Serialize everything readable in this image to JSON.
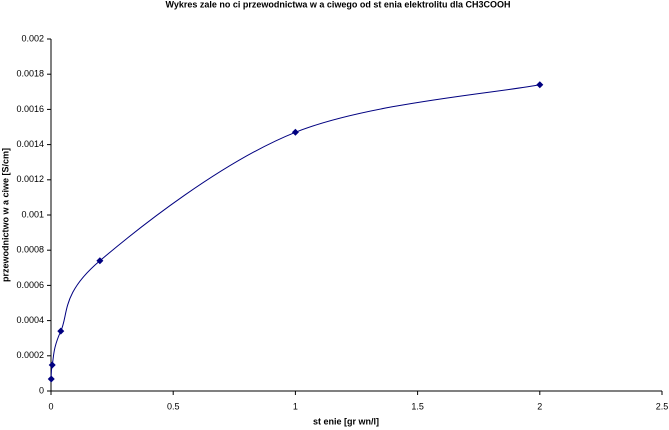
{
  "chart_data": {
    "type": "scatter",
    "title": "Wykres zale no ci przewodnictwa w a ciwego od st enia elektrolitu dla CH3COOH",
    "x_label": "st enie [gr wn/l]",
    "y_label": "przewodnictwo w a ciwe [S/cm]",
    "series": [
      {
        "color": "#000080",
        "x": [
          0.001,
          0.005,
          0.04,
          0.2,
          1,
          2
        ],
        "values": [
          6.8e-05,
          0.000148,
          0.00034,
          0.00074,
          0.00147,
          0.00174
        ]
      }
    ],
    "xlim": [
      0,
      2.5
    ],
    "xticks": [
      0,
      0.5,
      1,
      1.5,
      2,
      2.5
    ],
    "ylim": [
      0,
      0.002
    ],
    "yticks": [
      0,
      0.0002,
      0.0004,
      0.0006,
      0.0008,
      0.001,
      0.0012,
      0.0014,
      0.0016,
      0.0018,
      0.002
    ],
    "smooth": true
  }
}
